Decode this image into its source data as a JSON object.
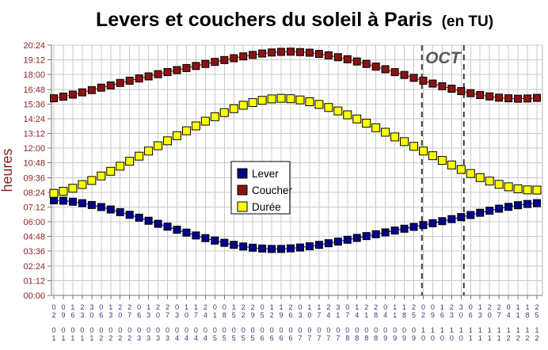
{
  "title": {
    "main": "Levers et couchers du soleil à Paris",
    "suffix": "(en TU)"
  },
  "y_axis": {
    "label": "heures"
  },
  "colors": {
    "lever": "#00008B",
    "coucher": "#8B1212",
    "duree": "#FFFF00",
    "y_label_color": "#8B2323",
    "x_label_color": "#3A3A70",
    "annotation": "#595959",
    "grid": "#C9C9C9"
  },
  "chart_data": {
    "type": "line",
    "title": "Levers et couchers du soleil à Paris (en TU)",
    "xlabel": "",
    "ylabel": "heures",
    "ylim": [
      "00:00",
      "20:24"
    ],
    "ytick_step_minutes": 72,
    "ytick_labels": [
      "00:00",
      "01:12",
      "02:24",
      "03:36",
      "04:48",
      "06:00",
      "07:12",
      "08:24",
      "09:36",
      "10:48",
      "12:00",
      "13:12",
      "14:24",
      "15:36",
      "16:48",
      "18:00",
      "19:12",
      "20:24"
    ],
    "grid": true,
    "legend_position": "center",
    "x_dates": [
      "02/01",
      "09/01",
      "16/01",
      "23/01",
      "30/01",
      "06/02",
      "13/02",
      "20/02",
      "27/02",
      "06/03",
      "13/03",
      "20/03",
      "27/03",
      "03/04",
      "10/04",
      "17/04",
      "24/04",
      "01/05",
      "08/05",
      "15/05",
      "22/05",
      "29/05",
      "05/06",
      "12/06",
      "19/06",
      "26/06",
      "03/07",
      "10/07",
      "17/07",
      "24/07",
      "31/07",
      "07/08",
      "14/08",
      "21/08",
      "28/08",
      "04/09",
      "11/09",
      "18/09",
      "25/09",
      "02/10",
      "09/10",
      "16/10",
      "23/10",
      "30/10",
      "06/11",
      "13/11",
      "20/11",
      "27/11",
      "04/12",
      "11/12",
      "18/12",
      "25/12"
    ],
    "series": [
      {
        "name": "Lever",
        "color": "#00008B",
        "marker": "square",
        "line": true,
        "values": [
          "07:45",
          "07:43",
          "07:38",
          "07:31",
          "07:22",
          "07:12",
          "07:00",
          "06:47",
          "06:34",
          "06:20",
          "06:05",
          "05:50",
          "05:36",
          "05:21",
          "05:07",
          "04:53",
          "04:40",
          "04:28",
          "04:17",
          "04:07",
          "03:59",
          "03:53",
          "03:49",
          "03:47",
          "03:47",
          "03:50",
          "03:54",
          "04:00",
          "04:07",
          "04:15",
          "04:23",
          "04:32",
          "04:41",
          "04:50",
          "04:59",
          "05:08",
          "05:17",
          "05:26",
          "05:35",
          "05:44",
          "05:53",
          "06:03",
          "06:13",
          "06:23",
          "06:33",
          "06:44",
          "06:54",
          "07:04",
          "07:13",
          "07:21",
          "07:27",
          "07:31"
        ]
      },
      {
        "name": "Coucher",
        "color": "#8B1212",
        "marker": "square",
        "line": true,
        "values": [
          "16:04",
          "16:12",
          "16:22",
          "16:33",
          "16:44",
          "16:56",
          "17:07",
          "17:19",
          "17:30",
          "17:41",
          "17:51",
          "18:02",
          "18:12",
          "18:22",
          "18:32",
          "18:42",
          "18:52",
          "19:02",
          "19:11",
          "19:20",
          "19:29",
          "19:36",
          "19:43",
          "19:48",
          "19:51",
          "19:52",
          "19:50",
          "19:47",
          "19:41",
          "19:34",
          "19:25",
          "19:15",
          "19:04",
          "18:52",
          "18:39",
          "18:26",
          "18:12",
          "17:58",
          "17:44",
          "17:30",
          "17:16",
          "17:03",
          "16:51",
          "16:39",
          "16:29",
          "16:20",
          "16:13",
          "16:07",
          "16:04",
          "16:02",
          "16:03",
          "16:06"
        ]
      },
      {
        "name": "Durée",
        "color": "#FFFF00",
        "marker": "square",
        "line": false,
        "values": [
          "08:19",
          "08:29",
          "08:44",
          "09:02",
          "09:22",
          "09:44",
          "10:07",
          "10:32",
          "10:56",
          "11:21",
          "11:46",
          "12:12",
          "12:36",
          "13:01",
          "13:25",
          "13:49",
          "14:12",
          "14:34",
          "14:54",
          "15:13",
          "15:30",
          "15:43",
          "15:54",
          "16:01",
          "16:04",
          "16:02",
          "15:56",
          "15:47",
          "15:34",
          "15:19",
          "15:02",
          "14:43",
          "14:23",
          "14:02",
          "13:40",
          "13:18",
          "12:55",
          "12:32",
          "12:09",
          "11:46",
          "11:23",
          "11:00",
          "10:38",
          "10:16",
          "09:56",
          "09:36",
          "09:19",
          "09:03",
          "08:51",
          "08:41",
          "08:36",
          "08:35"
        ]
      }
    ],
    "annotations": {
      "month_band": {
        "label": "OCT",
        "from_date": "01/10",
        "to_date": "01/11",
        "style": "vertical-dashed-lines"
      }
    }
  }
}
